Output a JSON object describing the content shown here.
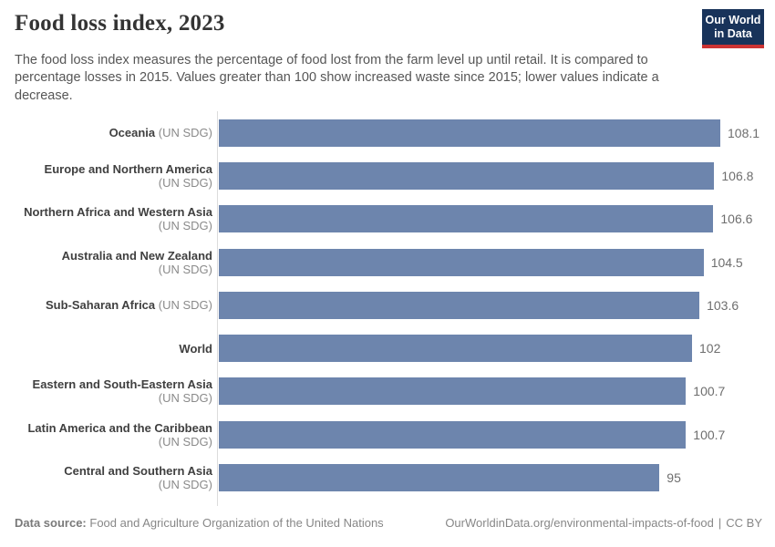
{
  "header": {
    "title": "Food loss index, 2023",
    "subtitle": "The food loss index measures the percentage of food lost from the farm level up until retail. It is compared to percentage losses in 2015. Values greater than 100 show increased waste since 2015; lower values indicate a decrease.",
    "logo": {
      "line1": "Our World",
      "line2": "in Data"
    }
  },
  "chart_data": {
    "type": "bar",
    "orientation": "horizontal",
    "title": "Food loss index, 2023",
    "categories": [
      {
        "name": "Oceania",
        "suffix": "(UN SDG)"
      },
      {
        "name": "Europe and Northern America",
        "suffix": "(UN SDG)"
      },
      {
        "name": "Northern Africa and Western Asia",
        "suffix": "(UN SDG)"
      },
      {
        "name": "Australia and New Zealand",
        "suffix": "(UN SDG)"
      },
      {
        "name": "Sub-Saharan Africa",
        "suffix": "(UN SDG)"
      },
      {
        "name": "World",
        "suffix": ""
      },
      {
        "name": "Eastern and South-Eastern Asia",
        "suffix": "(UN SDG)"
      },
      {
        "name": "Latin America and the Caribbean",
        "suffix": "(UN SDG)"
      },
      {
        "name": "Central and Southern Asia",
        "suffix": "(UN SDG)"
      }
    ],
    "values": [
      108.1,
      106.8,
      106.6,
      104.5,
      103.6,
      102,
      100.7,
      100.7,
      95
    ],
    "value_labels": [
      "108.1",
      "106.8",
      "106.6",
      "104.5",
      "103.6",
      "102",
      "100.7",
      "100.7",
      "95"
    ],
    "xlim": [
      0,
      108.1
    ],
    "grid": false,
    "legend": "none",
    "bar_color": "#6d85ad"
  },
  "footer": {
    "datasource_label": "Data source:",
    "datasource_value": "Food and Agriculture Organization of the United Nations",
    "url": "OurWorldinData.org/environmental-impacts-of-food",
    "separator": "|",
    "license": "CC BY"
  },
  "colors": {
    "bar": "#6d85ad",
    "logo_background": "#18335a",
    "logo_underline": "#cc3333",
    "axis_line": "#dcdcdc"
  }
}
